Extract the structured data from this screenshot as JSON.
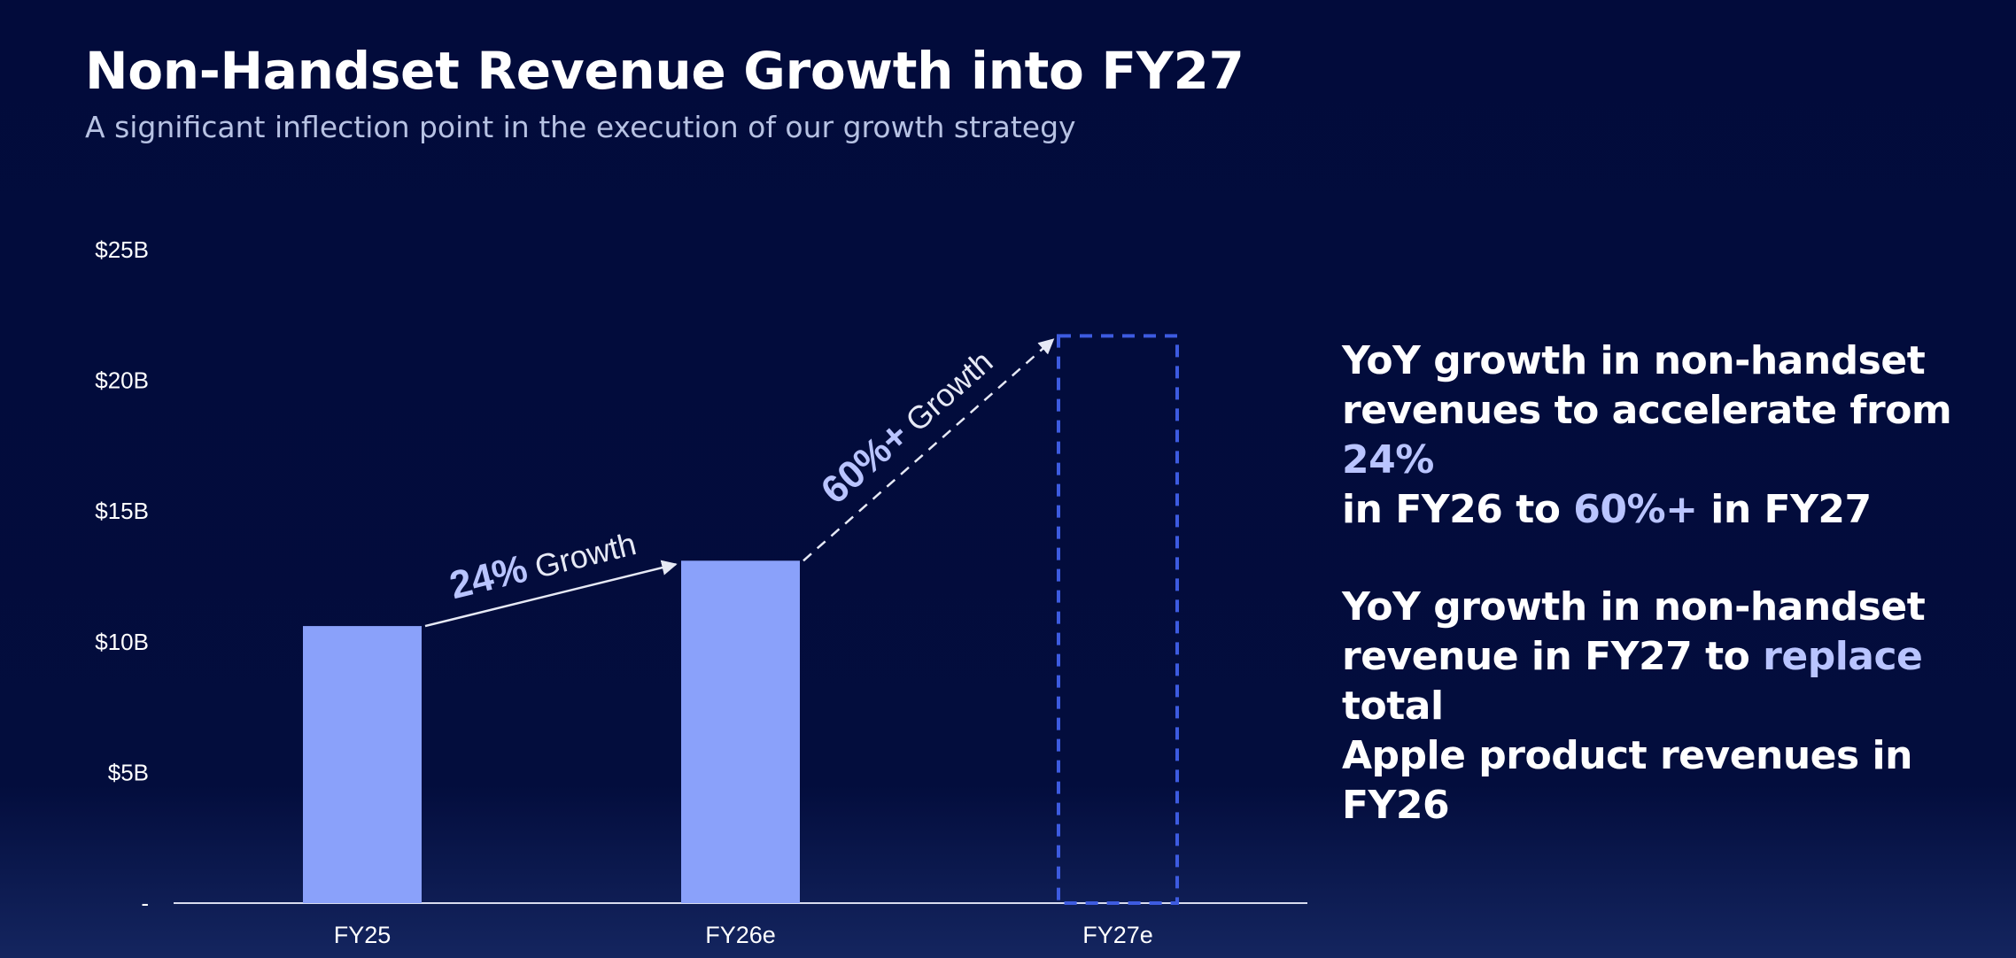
{
  "header": {
    "title": "Non-Handset Revenue Growth into FY27",
    "subtitle": "A significant inflection point in the execution of our growth strategy"
  },
  "colors": {
    "background": "#020b3b",
    "bar": "#8aa1fa",
    "projected_outline": "#3d5be0",
    "highlight": "#b9c4ff",
    "axis_text": "#ffffff"
  },
  "chart_data": {
    "type": "bar",
    "title": "",
    "xlabel": "",
    "ylabel": "",
    "categories": [
      "FY25",
      "FY26e",
      "FY27e"
    ],
    "values": [
      10.6,
      13.1,
      21.7
    ],
    "projected": [
      false,
      false,
      true
    ],
    "ylim": [
      0,
      25
    ],
    "yticks": [
      0,
      5,
      10,
      15,
      20,
      25
    ],
    "ytick_labels": [
      "-",
      "$5B",
      "$10B",
      "$15B",
      "$20B",
      "$25B"
    ],
    "grid": false,
    "annotations": [
      {
        "from": "FY25",
        "to": "FY26e",
        "value_text": "24%",
        "suffix_text": " Growth",
        "style": "solid"
      },
      {
        "from": "FY26e",
        "to": "FY27e",
        "value_text": "60%+",
        "suffix_text": " Growth",
        "style": "dashed"
      }
    ]
  },
  "side_text": [
    {
      "lines": [
        [
          {
            "text": "YoY growth in non-handset",
            "hl": false
          }
        ],
        [
          {
            "text": "revenues to accelerate from ",
            "hl": false
          },
          {
            "text": "24%",
            "hl": true
          }
        ],
        [
          {
            "text": "in FY26 to ",
            "hl": false
          },
          {
            "text": "60%+",
            "hl": true
          },
          {
            "text": " in FY27",
            "hl": false
          }
        ]
      ]
    },
    {
      "lines": [
        [
          {
            "text": "YoY growth in non-handset",
            "hl": false
          }
        ],
        [
          {
            "text": "revenue in FY27 to ",
            "hl": false
          },
          {
            "text": "replace",
            "hl": true
          },
          {
            "text": " total",
            "hl": false
          }
        ],
        [
          {
            "text": "Apple product revenues in FY26",
            "hl": false
          }
        ]
      ]
    }
  ]
}
